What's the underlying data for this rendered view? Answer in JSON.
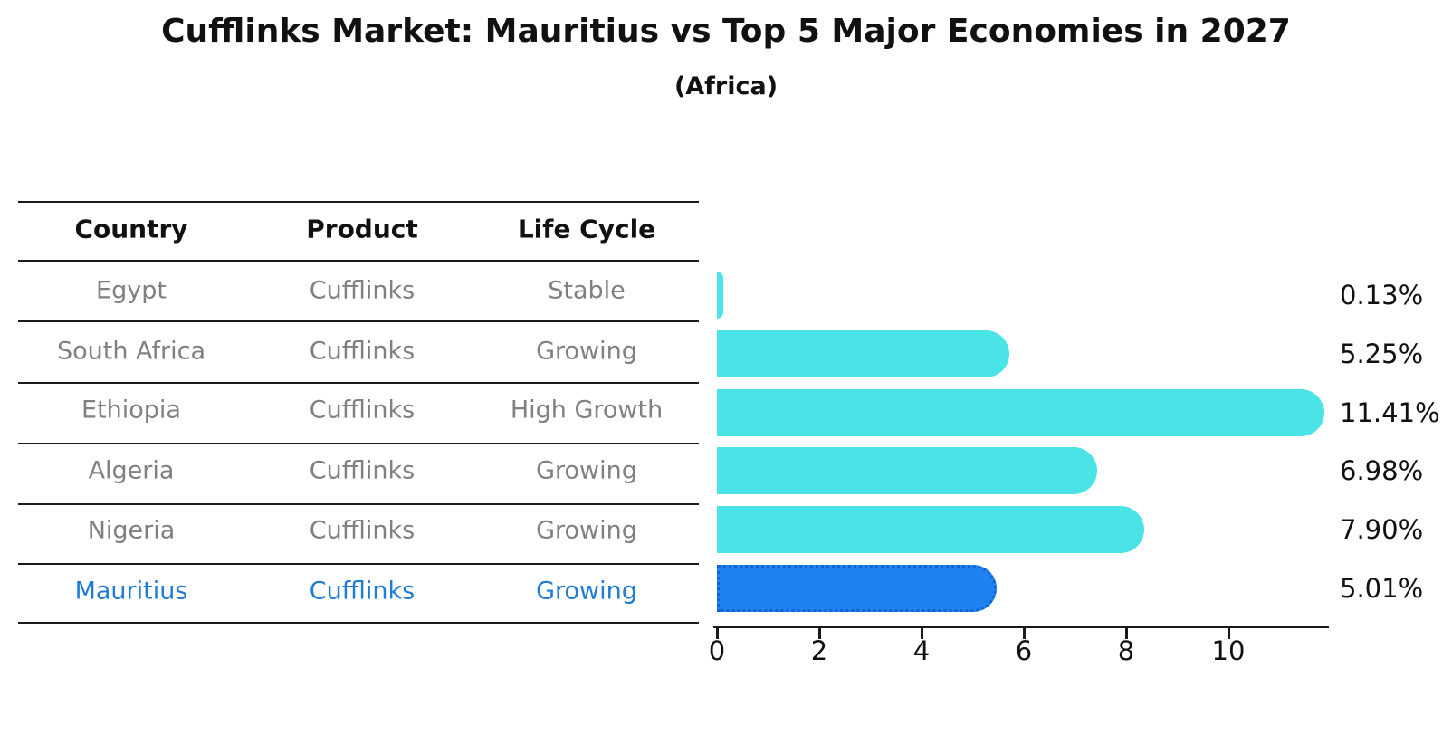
{
  "title": "Cufflinks Market: Mauritius vs Top 5 Major Economies in 2027",
  "subtitle": "(Africa)",
  "table": {
    "headers": [
      "Country",
      "Product",
      "Life Cycle"
    ],
    "rows": [
      {
        "country": "Egypt",
        "product": "Cufflinks",
        "life_cycle": "Stable"
      },
      {
        "country": "South Africa",
        "product": "Cufflinks",
        "life_cycle": "Growing"
      },
      {
        "country": "Ethiopia",
        "product": "Cufflinks",
        "life_cycle": "High Growth"
      },
      {
        "country": "Algeria",
        "product": "Cufflinks",
        "life_cycle": "Growing"
      },
      {
        "country": "Nigeria",
        "product": "Cufflinks",
        "life_cycle": "Growing"
      },
      {
        "country": "Mauritius",
        "product": "Cufflinks",
        "life_cycle": "Growing"
      }
    ],
    "highlight_row": 5
  },
  "chart_data": {
    "type": "bar",
    "orientation": "horizontal",
    "title": "Cufflinks Market: Mauritius vs Top 5 Major Economies in 2027 (Africa)",
    "categories": [
      "Egypt",
      "South Africa",
      "Ethiopia",
      "Algeria",
      "Nigeria",
      "Mauritius"
    ],
    "values": [
      0.13,
      5.25,
      11.41,
      6.98,
      7.9,
      5.01
    ],
    "value_labels": [
      "0.13%",
      "5.25%",
      "11.41%",
      "6.98%",
      "7.90%",
      "5.01%"
    ],
    "x_ticks": [
      0,
      2,
      4,
      6,
      8,
      10
    ],
    "xlim": [
      0,
      11.95
    ],
    "grid": false,
    "legend": "none",
    "bar_color": "#4AE4E6",
    "highlight_color": "#1E82F0",
    "highlight_index": 5
  }
}
